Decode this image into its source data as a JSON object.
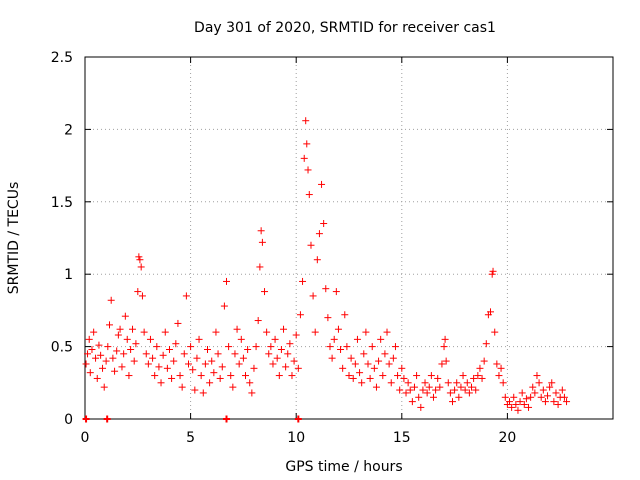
{
  "chart_data": {
    "type": "scatter",
    "title": "Day 301 of 2020, SRMTID for receiver cas1",
    "xlabel": "GPS time / hours",
    "ylabel": "SRMTID / TECUs",
    "xlim": [
      0,
      25
    ],
    "ylim": [
      0,
      2.5
    ],
    "xticks": [
      0,
      5,
      10,
      15,
      20
    ],
    "xtick_labels": [
      "0",
      "5",
      "10",
      "15",
      "20"
    ],
    "yticks": [
      0,
      0.5,
      1,
      1.5,
      2,
      2.5
    ],
    "ytick_labels": [
      "0",
      "0.5",
      "1",
      "1.5",
      "2",
      "2.5"
    ],
    "grid": true,
    "marker": "+",
    "marker_color": "#ff0000",
    "series": [
      {
        "name": "SRMTID",
        "points": [
          [
            0.05,
            0.38
          ],
          [
            0.12,
            0.45
          ],
          [
            0.2,
            0.55
          ],
          [
            0.25,
            0.32
          ],
          [
            0.33,
            0.48
          ],
          [
            0.41,
            0.6
          ],
          [
            0.5,
            0.42
          ],
          [
            0.58,
            0.28
          ],
          [
            0.66,
            0.51
          ],
          [
            0.74,
            0.44
          ],
          [
            0.83,
            0.35
          ],
          [
            0.91,
            0.22
          ],
          [
            1.0,
            0.4
          ],
          [
            1.08,
            0.5
          ],
          [
            1.16,
            0.65
          ],
          [
            1.24,
            0.82
          ],
          [
            1.32,
            0.42
          ],
          [
            1.4,
            0.33
          ],
          [
            1.5,
            0.47
          ],
          [
            1.58,
            0.58
          ],
          [
            1.66,
            0.62
          ],
          [
            1.75,
            0.36
          ],
          [
            1.83,
            0.45
          ],
          [
            1.91,
            0.71
          ],
          [
            2.0,
            0.55
          ],
          [
            2.08,
            0.3
          ],
          [
            2.16,
            0.48
          ],
          [
            2.25,
            0.62
          ],
          [
            2.33,
            0.4
          ],
          [
            2.41,
            0.52
          ],
          [
            2.5,
            0.88
          ],
          [
            2.55,
            1.12
          ],
          [
            2.6,
            1.1
          ],
          [
            2.66,
            1.05
          ],
          [
            2.72,
            0.85
          ],
          [
            2.8,
            0.6
          ],
          [
            2.9,
            0.45
          ],
          [
            3.0,
            0.38
          ],
          [
            3.1,
            0.55
          ],
          [
            3.2,
            0.42
          ],
          [
            3.3,
            0.3
          ],
          [
            3.4,
            0.5
          ],
          [
            3.5,
            0.36
          ],
          [
            3.6,
            0.25
          ],
          [
            3.7,
            0.44
          ],
          [
            3.8,
            0.6
          ],
          [
            3.9,
            0.35
          ],
          [
            4.0,
            0.48
          ],
          [
            4.1,
            0.28
          ],
          [
            4.2,
            0.4
          ],
          [
            4.3,
            0.52
          ],
          [
            4.4,
            0.66
          ],
          [
            4.5,
            0.3
          ],
          [
            4.6,
            0.22
          ],
          [
            4.7,
            0.45
          ],
          [
            4.8,
            0.85
          ],
          [
            4.9,
            0.38
          ],
          [
            5.0,
            0.5
          ],
          [
            5.1,
            0.34
          ],
          [
            5.2,
            0.2
          ],
          [
            5.3,
            0.42
          ],
          [
            5.4,
            0.55
          ],
          [
            5.5,
            0.3
          ],
          [
            5.6,
            0.18
          ],
          [
            5.7,
            0.38
          ],
          [
            5.8,
            0.48
          ],
          [
            5.9,
            0.25
          ],
          [
            6.0,
            0.4
          ],
          [
            6.1,
            0.32
          ],
          [
            6.2,
            0.6
          ],
          [
            6.3,
            0.45
          ],
          [
            6.4,
            0.28
          ],
          [
            6.5,
            0.36
          ],
          [
            6.6,
            0.78
          ],
          [
            6.7,
            0.95
          ],
          [
            6.8,
            0.5
          ],
          [
            6.9,
            0.3
          ],
          [
            7.0,
            0.22
          ],
          [
            7.1,
            0.45
          ],
          [
            7.2,
            0.62
          ],
          [
            7.3,
            0.38
          ],
          [
            7.4,
            0.55
          ],
          [
            7.5,
            0.42
          ],
          [
            7.6,
            0.3
          ],
          [
            7.7,
            0.48
          ],
          [
            7.8,
            0.25
          ],
          [
            7.9,
            0.18
          ],
          [
            8.0,
            0.35
          ],
          [
            8.1,
            0.5
          ],
          [
            8.2,
            0.68
          ],
          [
            8.28,
            1.05
          ],
          [
            8.34,
            1.3
          ],
          [
            8.4,
            1.22
          ],
          [
            8.5,
            0.88
          ],
          [
            8.6,
            0.6
          ],
          [
            8.7,
            0.45
          ],
          [
            8.8,
            0.5
          ],
          [
            8.9,
            0.38
          ],
          [
            9.0,
            0.55
          ],
          [
            9.1,
            0.42
          ],
          [
            9.2,
            0.3
          ],
          [
            9.3,
            0.48
          ],
          [
            9.4,
            0.62
          ],
          [
            9.5,
            0.36
          ],
          [
            9.6,
            0.45
          ],
          [
            9.7,
            0.52
          ],
          [
            9.8,
            0.3
          ],
          [
            9.9,
            0.4
          ],
          [
            10.0,
            0.58
          ],
          [
            10.1,
            0.35
          ],
          [
            10.2,
            0.72
          ],
          [
            10.3,
            0.95
          ],
          [
            10.38,
            1.8
          ],
          [
            10.45,
            2.06
          ],
          [
            10.5,
            1.9
          ],
          [
            10.56,
            1.72
          ],
          [
            10.62,
            1.55
          ],
          [
            10.7,
            1.2
          ],
          [
            10.8,
            0.85
          ],
          [
            10.9,
            0.6
          ],
          [
            11.0,
            1.1
          ],
          [
            11.1,
            1.28
          ],
          [
            11.2,
            1.62
          ],
          [
            11.3,
            1.35
          ],
          [
            11.4,
            0.9
          ],
          [
            11.5,
            0.7
          ],
          [
            11.6,
            0.5
          ],
          [
            11.7,
            0.42
          ],
          [
            11.8,
            0.55
          ],
          [
            11.9,
            0.88
          ],
          [
            12.0,
            0.62
          ],
          [
            12.1,
            0.48
          ],
          [
            12.2,
            0.35
          ],
          [
            12.3,
            0.72
          ],
          [
            12.4,
            0.5
          ],
          [
            12.5,
            0.3
          ],
          [
            12.6,
            0.42
          ],
          [
            12.7,
            0.28
          ],
          [
            12.8,
            0.38
          ],
          [
            12.9,
            0.55
          ],
          [
            13.0,
            0.32
          ],
          [
            13.1,
            0.25
          ],
          [
            13.2,
            0.45
          ],
          [
            13.3,
            0.6
          ],
          [
            13.4,
            0.38
          ],
          [
            13.5,
            0.28
          ],
          [
            13.6,
            0.5
          ],
          [
            13.7,
            0.35
          ],
          [
            13.8,
            0.22
          ],
          [
            13.9,
            0.4
          ],
          [
            14.0,
            0.55
          ],
          [
            14.1,
            0.3
          ],
          [
            14.2,
            0.45
          ],
          [
            14.3,
            0.6
          ],
          [
            14.4,
            0.38
          ],
          [
            14.5,
            0.25
          ],
          [
            14.6,
            0.42
          ],
          [
            14.7,
            0.5
          ],
          [
            14.8,
            0.3
          ],
          [
            14.9,
            0.2
          ],
          [
            15.0,
            0.35
          ],
          [
            15.1,
            0.28
          ],
          [
            15.2,
            0.18
          ],
          [
            15.3,
            0.25
          ],
          [
            15.4,
            0.2
          ],
          [
            15.5,
            0.12
          ],
          [
            15.6,
            0.22
          ],
          [
            15.7,
            0.3
          ],
          [
            15.8,
            0.15
          ],
          [
            15.9,
            0.08
          ],
          [
            16.0,
            0.2
          ],
          [
            16.1,
            0.25
          ],
          [
            16.2,
            0.18
          ],
          [
            16.3,
            0.22
          ],
          [
            16.4,
            0.3
          ],
          [
            16.5,
            0.15
          ],
          [
            16.6,
            0.2
          ],
          [
            16.7,
            0.28
          ],
          [
            16.8,
            0.22
          ],
          [
            16.9,
            0.38
          ],
          [
            17.0,
            0.5
          ],
          [
            17.05,
            0.55
          ],
          [
            17.1,
            0.4
          ],
          [
            17.2,
            0.25
          ],
          [
            17.3,
            0.18
          ],
          [
            17.4,
            0.12
          ],
          [
            17.5,
            0.2
          ],
          [
            17.6,
            0.25
          ],
          [
            17.7,
            0.15
          ],
          [
            17.8,
            0.22
          ],
          [
            17.9,
            0.3
          ],
          [
            18.0,
            0.2
          ],
          [
            18.1,
            0.25
          ],
          [
            18.2,
            0.18
          ],
          [
            18.3,
            0.22
          ],
          [
            18.4,
            0.28
          ],
          [
            18.5,
            0.2
          ],
          [
            18.6,
            0.3
          ],
          [
            18.7,
            0.35
          ],
          [
            18.8,
            0.28
          ],
          [
            18.9,
            0.4
          ],
          [
            19.0,
            0.52
          ],
          [
            19.1,
            0.72
          ],
          [
            19.2,
            0.74
          ],
          [
            19.28,
            1.0
          ],
          [
            19.32,
            1.02
          ],
          [
            19.4,
            0.6
          ],
          [
            19.5,
            0.38
          ],
          [
            19.6,
            0.3
          ],
          [
            19.7,
            0.35
          ],
          [
            19.8,
            0.25
          ],
          [
            19.9,
            0.15
          ],
          [
            20.0,
            0.1
          ],
          [
            20.1,
            0.12
          ],
          [
            20.2,
            0.08
          ],
          [
            20.3,
            0.15
          ],
          [
            20.4,
            0.1
          ],
          [
            20.5,
            0.06
          ],
          [
            20.6,
            0.12
          ],
          [
            20.7,
            0.18
          ],
          [
            20.8,
            0.1
          ],
          [
            20.9,
            0.14
          ],
          [
            21.0,
            0.08
          ],
          [
            21.1,
            0.15
          ],
          [
            21.2,
            0.22
          ],
          [
            21.3,
            0.18
          ],
          [
            21.4,
            0.3
          ],
          [
            21.5,
            0.25
          ],
          [
            21.6,
            0.15
          ],
          [
            21.7,
            0.2
          ],
          [
            21.8,
            0.12
          ],
          [
            21.9,
            0.16
          ],
          [
            22.0,
            0.22
          ],
          [
            22.1,
            0.25
          ],
          [
            22.2,
            0.12
          ],
          [
            22.3,
            0.18
          ],
          [
            22.4,
            0.1
          ],
          [
            22.5,
            0.15
          ],
          [
            22.6,
            0.2
          ],
          [
            22.7,
            0.15
          ],
          [
            22.8,
            0.12
          ]
        ]
      }
    ],
    "zero_markers_x": [
      0.05,
      1.05,
      6.7,
      10.1
    ]
  }
}
